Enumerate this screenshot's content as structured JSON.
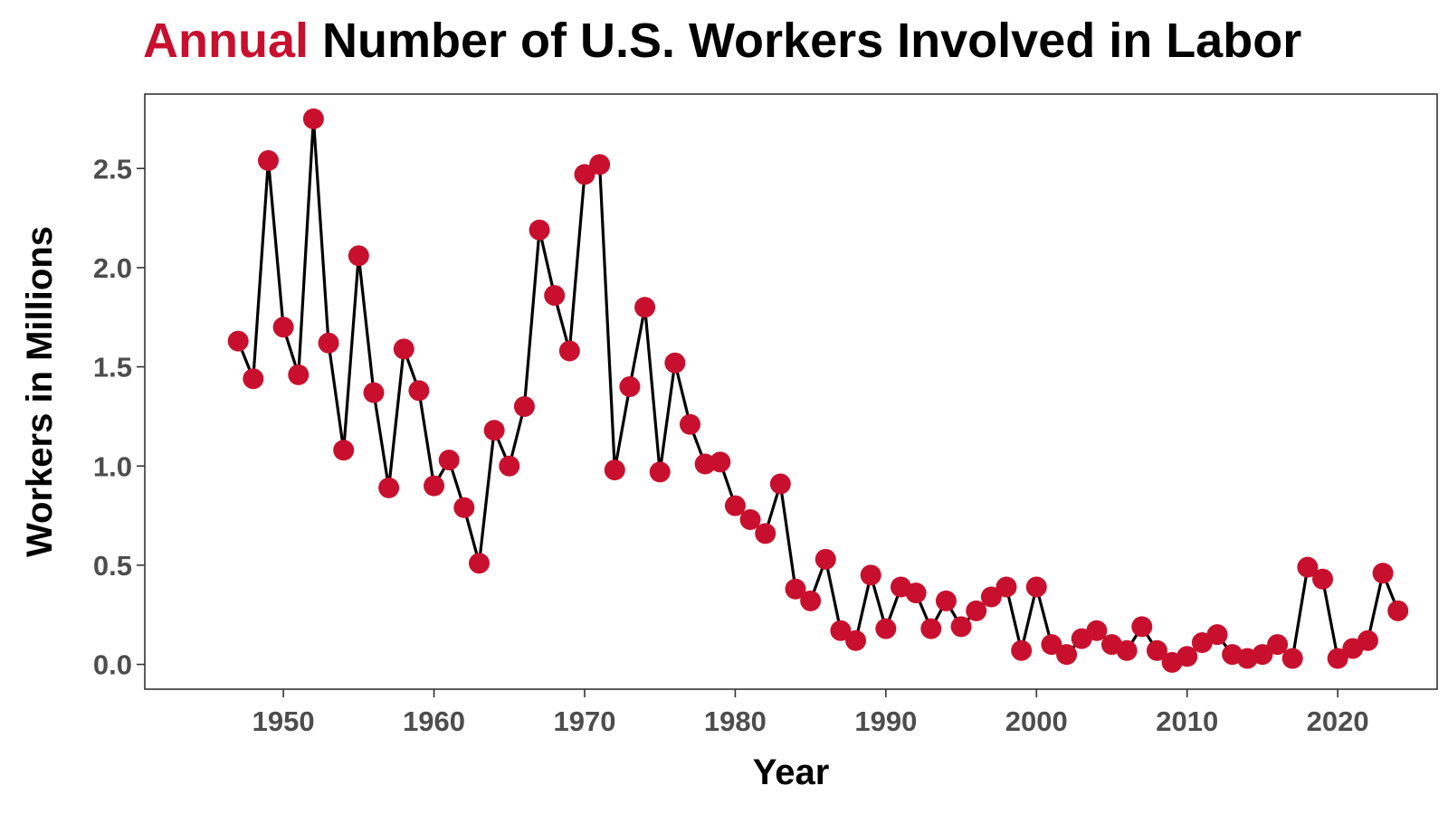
{
  "title": {
    "accent": "Annual",
    "rest": "Number of U.S. Workers Involved in Labor"
  },
  "colors": {
    "accent": "#c8102e",
    "line": "#000000",
    "point": "#c8102e",
    "tick_text": "#4d4d4d"
  },
  "chart_data": {
    "type": "line",
    "title": "Annual Number of U.S. Workers Involved in Labor",
    "xlabel": "Year",
    "ylabel": "Workers in Millions",
    "xlim": [
      1940.8,
      2026.6
    ],
    "ylim": [
      -0.125,
      2.875
    ],
    "x_ticks": [
      1950,
      1960,
      1970,
      1980,
      1990,
      2000,
      2010,
      2020
    ],
    "y_ticks": [
      0.0,
      0.5,
      1.0,
      1.5,
      2.0,
      2.5
    ],
    "y_tick_labels": [
      "0.0",
      "0.5",
      "1.0",
      "1.5",
      "2.0",
      "2.5"
    ],
    "grid": false,
    "legend": "none",
    "markers": true,
    "series": [
      {
        "x": [
          1947,
          1948,
          1949,
          1950,
          1951,
          1952,
          1953,
          1954,
          1955,
          1956,
          1957,
          1958,
          1959,
          1960,
          1961,
          1962,
          1963,
          1964,
          1965,
          1966,
          1967,
          1968,
          1969,
          1970,
          1971,
          1972,
          1973,
          1974,
          1975,
          1976,
          1977,
          1978,
          1979,
          1980,
          1981,
          1982,
          1983,
          1984,
          1985,
          1986,
          1987,
          1988,
          1989,
          1990,
          1991,
          1992,
          1993,
          1994,
          1995,
          1996,
          1997,
          1998,
          1999,
          2000,
          2001,
          2002,
          2003,
          2004,
          2005,
          2006,
          2007,
          2008,
          2009,
          2010,
          2011,
          2012,
          2013,
          2014,
          2015,
          2016,
          2017,
          2018,
          2019,
          2020,
          2021,
          2022,
          2023,
          2024
        ],
        "y": [
          1.63,
          1.44,
          2.54,
          1.7,
          1.46,
          2.75,
          1.62,
          1.08,
          2.06,
          1.37,
          0.89,
          1.59,
          1.38,
          0.9,
          1.03,
          0.79,
          0.51,
          1.18,
          1.0,
          1.3,
          2.19,
          1.86,
          1.58,
          2.47,
          2.52,
          0.98,
          1.4,
          1.8,
          0.97,
          1.52,
          1.21,
          1.01,
          1.02,
          0.8,
          0.73,
          0.66,
          0.91,
          0.38,
          0.32,
          0.53,
          0.17,
          0.12,
          0.45,
          0.18,
          0.39,
          0.36,
          0.18,
          0.32,
          0.19,
          0.27,
          0.34,
          0.39,
          0.07,
          0.39,
          0.1,
          0.05,
          0.13,
          0.17,
          0.1,
          0.07,
          0.19,
          0.07,
          0.01,
          0.04,
          0.11,
          0.15,
          0.05,
          0.03,
          0.05,
          0.1,
          0.03,
          0.49,
          0.43,
          0.03,
          0.08,
          0.12,
          0.46,
          0.27
        ]
      }
    ]
  }
}
